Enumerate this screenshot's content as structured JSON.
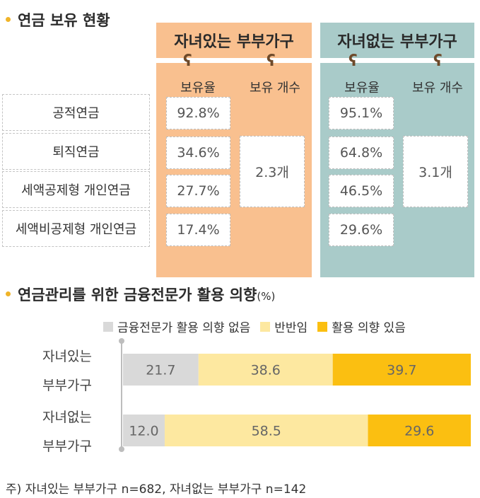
{
  "section1": {
    "title": "연금 보유 현황"
  },
  "groups": [
    {
      "title": "자녀있는 부부가구",
      "rate_label": "보유율",
      "count_label": "보유 개수",
      "rates": [
        "92.8%",
        "34.6%",
        "27.7%",
        "17.4%"
      ],
      "count": "2.3개"
    },
    {
      "title": "자녀없는 부부가구",
      "rate_label": "보유율",
      "count_label": "보유 개수",
      "rates": [
        "95.1%",
        "64.8%",
        "46.5%",
        "29.6%"
      ],
      "count": "3.1개"
    }
  ],
  "pension_types": [
    "공적연금",
    "퇴직연금",
    "세액공제형 개인연금",
    "세액비공제형 개인연금"
  ],
  "section2": {
    "title": "연금관리를 위한 금융전문가 활용 의향",
    "unit": "(%)"
  },
  "footnote": "주) 자녀있는 부부가구 n=682, 자녀없는 부부가구 n=142",
  "colors": {
    "orange_panel": "#f9c08f",
    "teal_panel": "#a9cbc9",
    "gray": "#d9d9d9",
    "light_yellow": "#fde8a0",
    "gold": "#fbbf11"
  },
  "chart_data": {
    "type": "bar",
    "orientation": "horizontal",
    "stacked": true,
    "categories": [
      "자녀있는 부부가구",
      "자녀없는 부부가구"
    ],
    "category_lines": [
      [
        "자녀있는",
        "부부가구"
      ],
      [
        "자녀없는",
        "부부가구"
      ]
    ],
    "series": [
      {
        "name": "금융전문가 활용 의향 없음",
        "values": [
          21.7,
          12.0
        ],
        "labels": [
          "21.7",
          "12.0"
        ],
        "color": "#d9d9d9"
      },
      {
        "name": "반반임",
        "values": [
          38.6,
          58.5
        ],
        "labels": [
          "38.6",
          "58.5"
        ],
        "color": "#fde8a0"
      },
      {
        "name": "활용 의향 있음",
        "values": [
          39.7,
          29.6
        ],
        "labels": [
          "39.7",
          "29.6"
        ],
        "color": "#fbbf11"
      }
    ],
    "unit": "%",
    "legend_position": "top"
  }
}
